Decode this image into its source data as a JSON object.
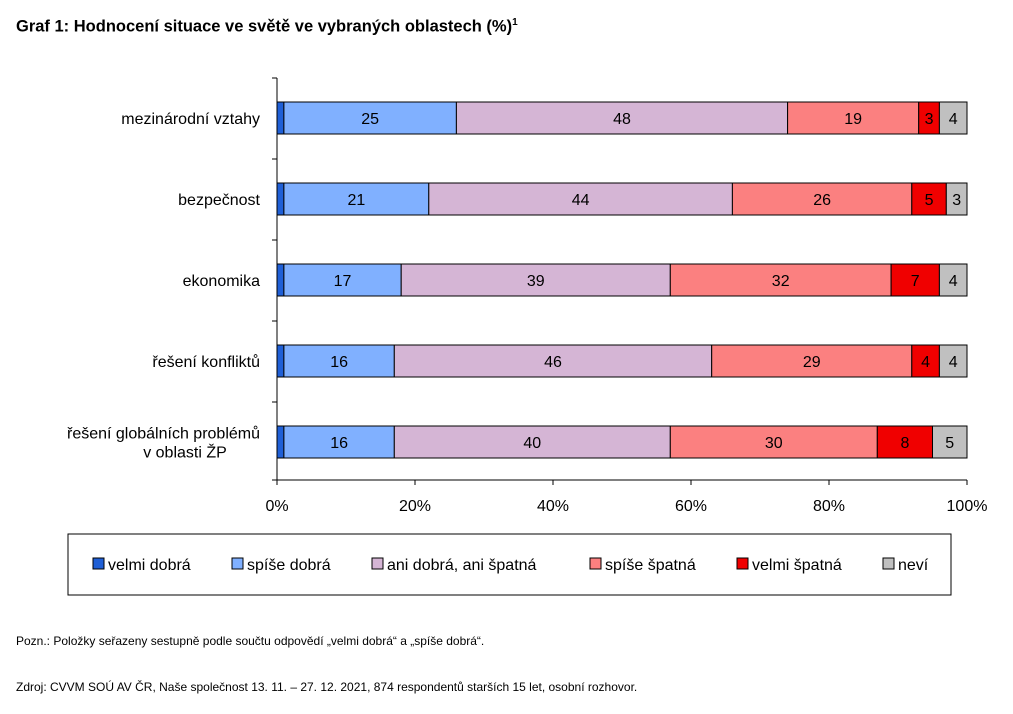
{
  "title": "Graf 1: Hodnocení situace ve světě ve vybraných oblastech (%)",
  "title_sup": "1",
  "note": "Pozn.: Položky seřazeny sestupně podle součtu odpovědí „velmi dobrá“ a „spíše dobrá“.",
  "source": "Zdroj: CVVM SOÚ AV ČR, Naše společnost 13. 11. – 27. 12. 2021, 874 respondentů starších 15 let, osobní rozhovor.",
  "chart_data": {
    "type": "bar",
    "orientation": "horizontal",
    "stacked": "percent",
    "categories": [
      [
        "mezinárodní vztahy"
      ],
      [
        "bezpečnost"
      ],
      [
        "ekonomika"
      ],
      [
        "řešení konfliktů"
      ],
      [
        "řešení globálních problémů",
        "v oblasti ŽP"
      ]
    ],
    "series": [
      {
        "name": "velmi dobrá",
        "color": "#1f5fd6",
        "values": [
          1,
          1,
          1,
          1,
          1
        ]
      },
      {
        "name": "spíše dobrá",
        "color": "#80b0ff",
        "values": [
          25,
          21,
          17,
          16,
          16
        ]
      },
      {
        "name": "ani dobrá, ani špatná",
        "color": "#d5b5d5",
        "values": [
          48,
          44,
          39,
          46,
          40
        ]
      },
      {
        "name": "spíše špatná",
        "color": "#fb8080",
        "values": [
          19,
          26,
          32,
          29,
          30
        ]
      },
      {
        "name": "velmi špatná",
        "color": "#f00000",
        "values": [
          3,
          5,
          7,
          4,
          8
        ]
      },
      {
        "name": "neví",
        "color": "#c0c0c0",
        "values": [
          4,
          3,
          4,
          4,
          5
        ]
      }
    ],
    "xlim": [
      0,
      100
    ],
    "xticks": [
      "0%",
      "20%",
      "40%",
      "60%",
      "80%",
      "100%"
    ],
    "legend_position": "bottom",
    "grid": false
  }
}
